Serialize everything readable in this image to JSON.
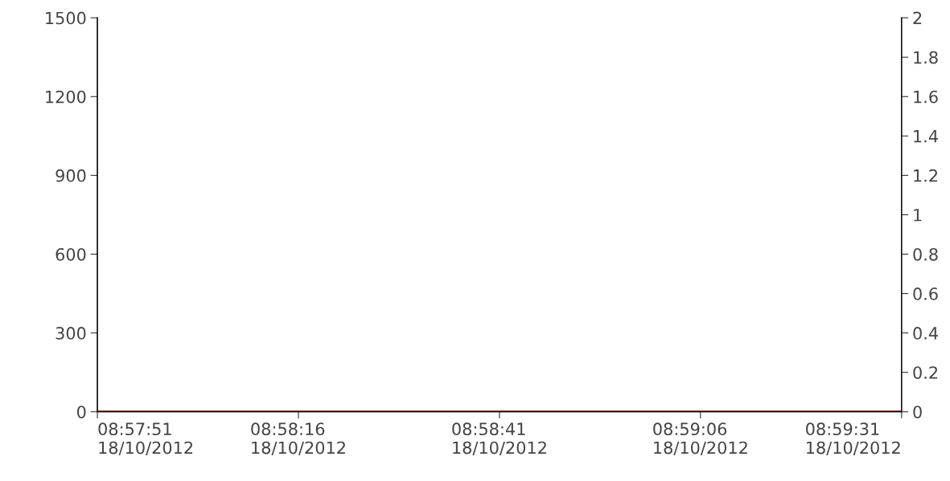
{
  "chart_data": {
    "type": "line",
    "categories": [
      "08:57:51\n18/10/2012",
      "08:58:16\n18/10/2012",
      "08:58:41\n18/10/2012",
      "08:59:06\n18/10/2012",
      "08:59:31\n18/10/2012"
    ],
    "series": [
      {
        "color": "#9b1c1c",
        "values": [
          0,
          0,
          0,
          0,
          0
        ]
      }
    ],
    "ylim": [
      0,
      1500
    ],
    "yticks": [
      0,
      300,
      600,
      900,
      1200,
      1500
    ],
    "y2lim": [
      0,
      2
    ],
    "y2ticks": [
      0,
      0.2,
      0.4,
      0.6,
      0.8,
      1,
      1.2,
      1.4,
      1.6,
      1.8,
      2
    ],
    "grid": false,
    "legend": false,
    "marker": "none",
    "line_style": "solid"
  }
}
